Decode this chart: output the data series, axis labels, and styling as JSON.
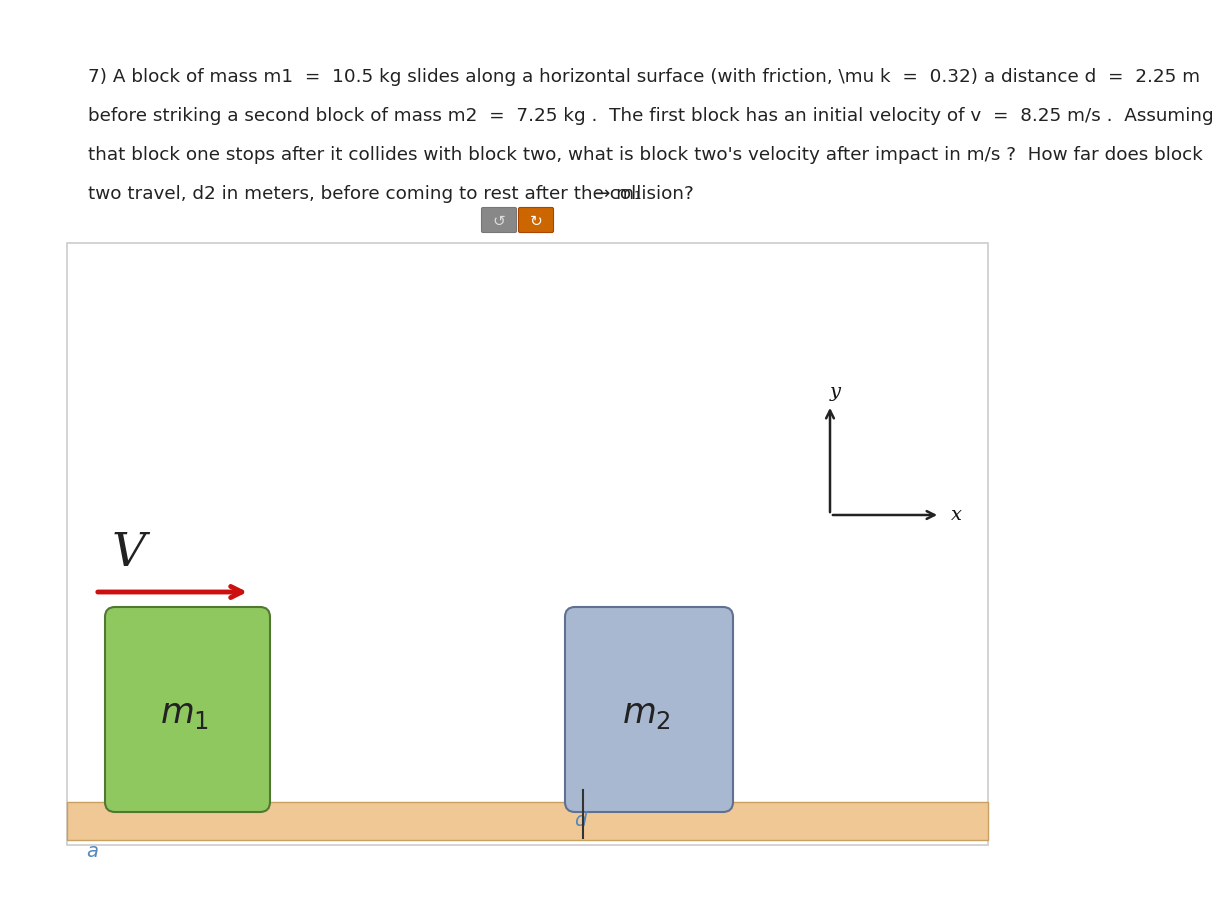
{
  "bg_color": "#ffffff",
  "fig_width": 10.8,
  "fig_height": 8.94,
  "text_line1": "7) A block of mass m1  =  10.5 kg slides along a horizontal surface (with friction, \\mu k  =  0.32) a distance d  =  2.25 m",
  "text_line2": "before striking a second block of mass m2  =  7.25 kg .  The first block has an initial velocity of v  =  8.25 m/s .  Assuming",
  "text_line3": "that block one stops after it collides with block two, what is block two's velocity after impact in m/s ?  How far does block",
  "text_line4": "two travel, d2 in meters, before coming to rest after the collision?",
  "arrow_tail_label": "→ m₁",
  "floor_color": "#f0c896",
  "floor_outline": "#c8a060",
  "block1_color": "#90c860",
  "block1_edge": "#507830",
  "block2_color": "#a8b8d0",
  "block2_edge": "#607090",
  "vel_arrow_color": "#cc1010",
  "diag_bg": "#ffffff",
  "diag_border": "#cccccc",
  "label_blue": "#5588bb",
  "axis_color": "#222222",
  "text_color": "#222222",
  "btn1_color": "#888888",
  "btn2_color": "#cc6600"
}
